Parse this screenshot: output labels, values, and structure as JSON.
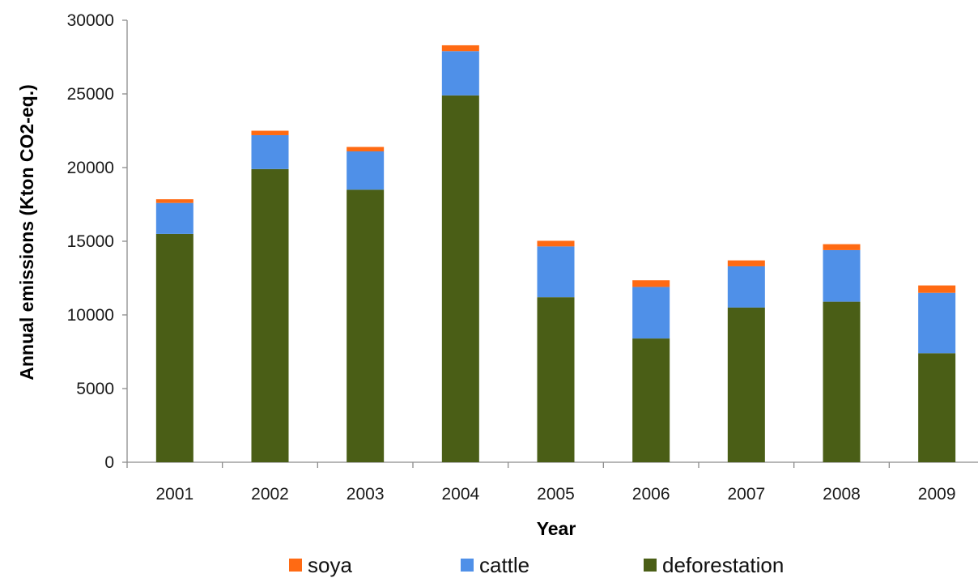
{
  "chart_data": {
    "type": "bar",
    "stacked": true,
    "categories": [
      "2001",
      "2002",
      "2003",
      "2004",
      "2005",
      "2006",
      "2007",
      "2008",
      "2009"
    ],
    "series": [
      {
        "name": "deforestation",
        "color": "#4a5e16",
        "values": [
          15500,
          19900,
          18500,
          24900,
          11200,
          8400,
          10500,
          10900,
          7400
        ]
      },
      {
        "name": "cattle",
        "color": "#4f90e8",
        "values": [
          2100,
          2300,
          2600,
          3000,
          3450,
          3500,
          2800,
          3500,
          4100
        ]
      },
      {
        "name": "soya",
        "color": "#ff6a13",
        "values": [
          250,
          300,
          300,
          400,
          380,
          450,
          400,
          400,
          500
        ]
      }
    ],
    "legend_order": [
      "soya",
      "cattle",
      "deforestation"
    ],
    "legend_position": "bottom",
    "xlabel": "Year",
    "ylabel": "Annual emissions (Kton CO2-eq.)",
    "ylim": [
      0,
      30000
    ],
    "yticks": [
      0,
      5000,
      10000,
      15000,
      20000,
      25000,
      30000
    ],
    "grid": false
  }
}
